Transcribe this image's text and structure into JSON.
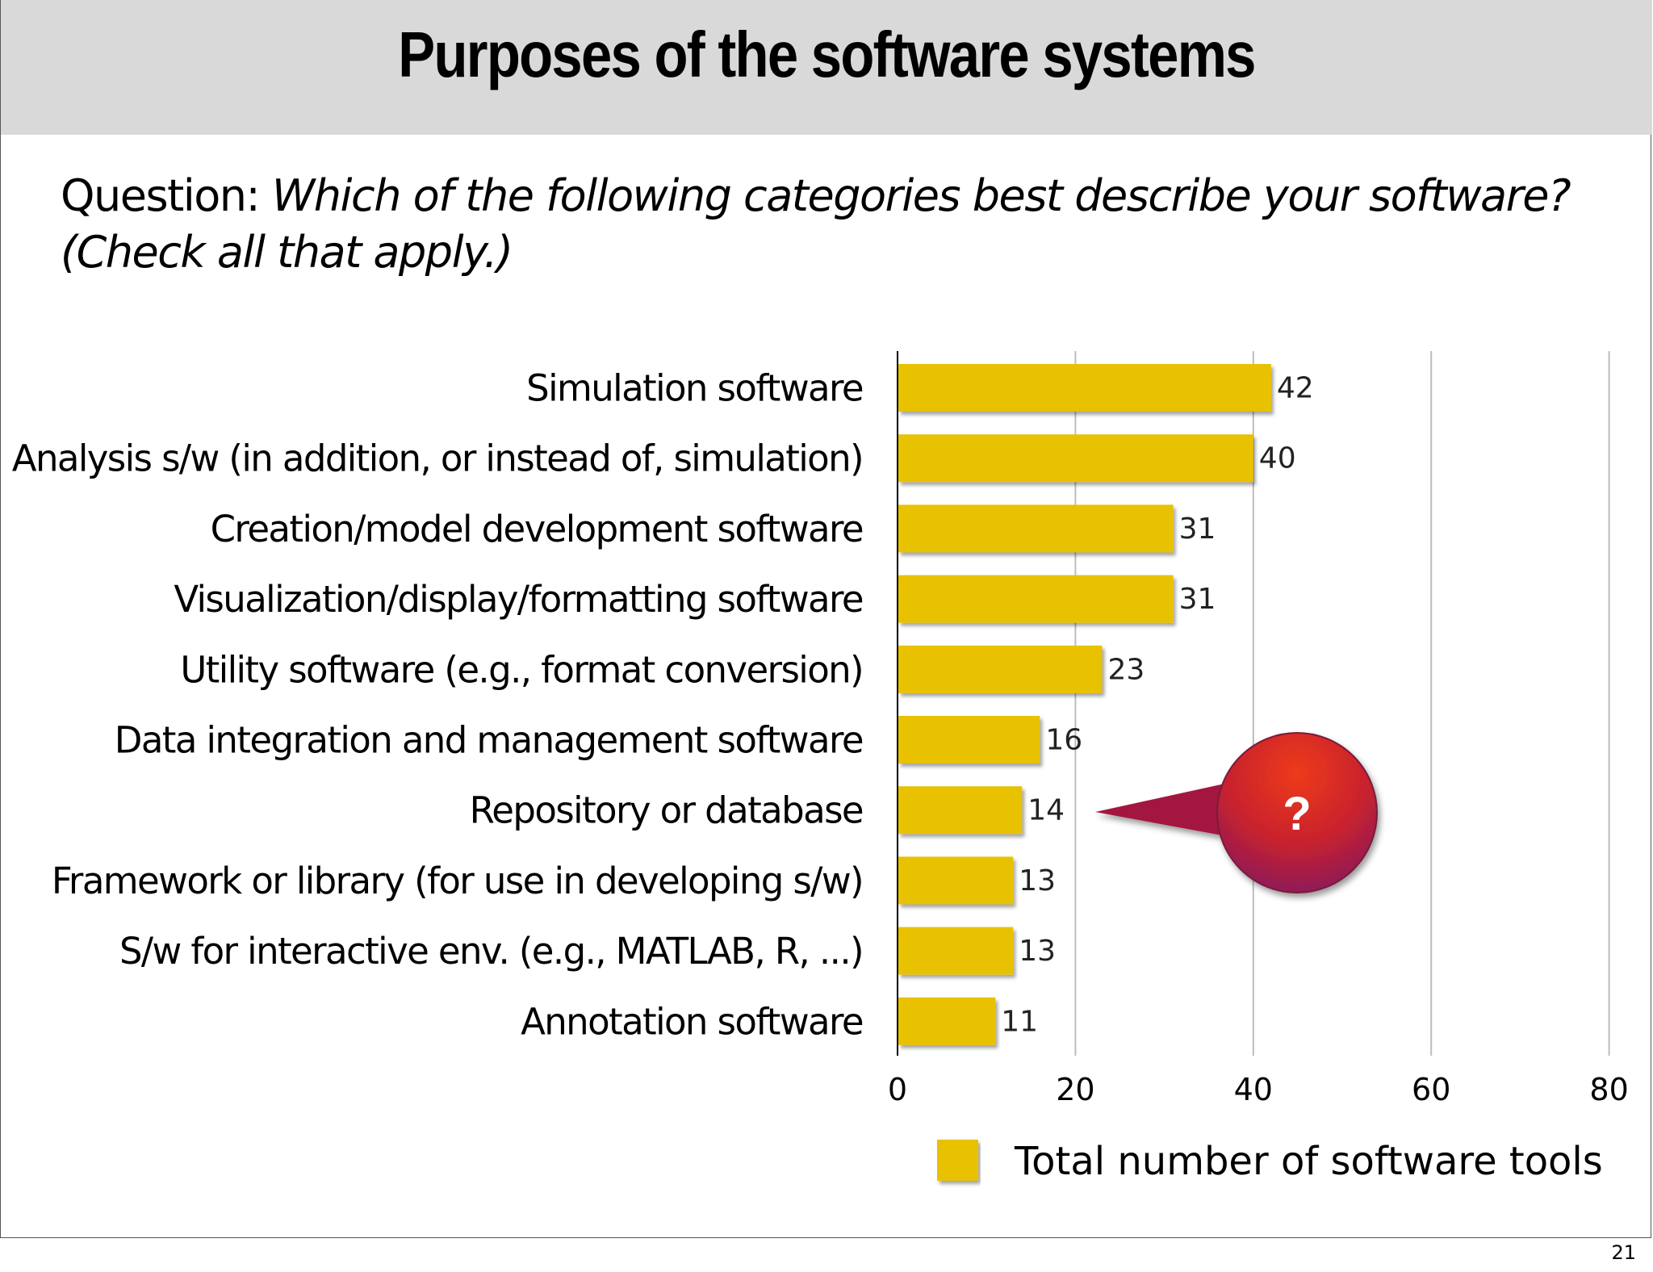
{
  "slide": {
    "title": "Purposes of the software systems",
    "question_prefix": "Question: ",
    "question_text": "Which of the following categories best describe your software? (Check all that apply.)",
    "page_number": "21"
  },
  "callout": {
    "text": "?",
    "points_to": "Repository or database"
  },
  "colors": {
    "bar": "#e8c100",
    "gridline": "#bdbdbd",
    "axis": "#000000",
    "title_bar": "#d9d9d9",
    "callout_top": "#e8341c",
    "callout_bottom": "#8a1a5a"
  },
  "chart_data": {
    "type": "bar",
    "orientation": "horizontal",
    "categories": [
      "Simulation software",
      "Analysis s/w (in addition, or instead of, simulation)",
      "Creation/model development software",
      "Visualization/display/formatting software",
      "Utility software (e.g., format conversion)",
      "Data integration and management software",
      "Repository or database",
      "Framework or library (for use in developing s/w)",
      "S/w for interactive env. (e.g., MATLAB, R, ...)",
      "Annotation software"
    ],
    "series": [
      {
        "name": "Total number of software tools",
        "values": [
          42,
          40,
          31,
          31,
          23,
          16,
          14,
          13,
          13,
          11
        ]
      }
    ],
    "xlim": [
      0,
      80
    ],
    "xticks": [
      0,
      20,
      40,
      60,
      80
    ],
    "grid": true,
    "legend_position": "bottom-right",
    "data_labels": true
  }
}
